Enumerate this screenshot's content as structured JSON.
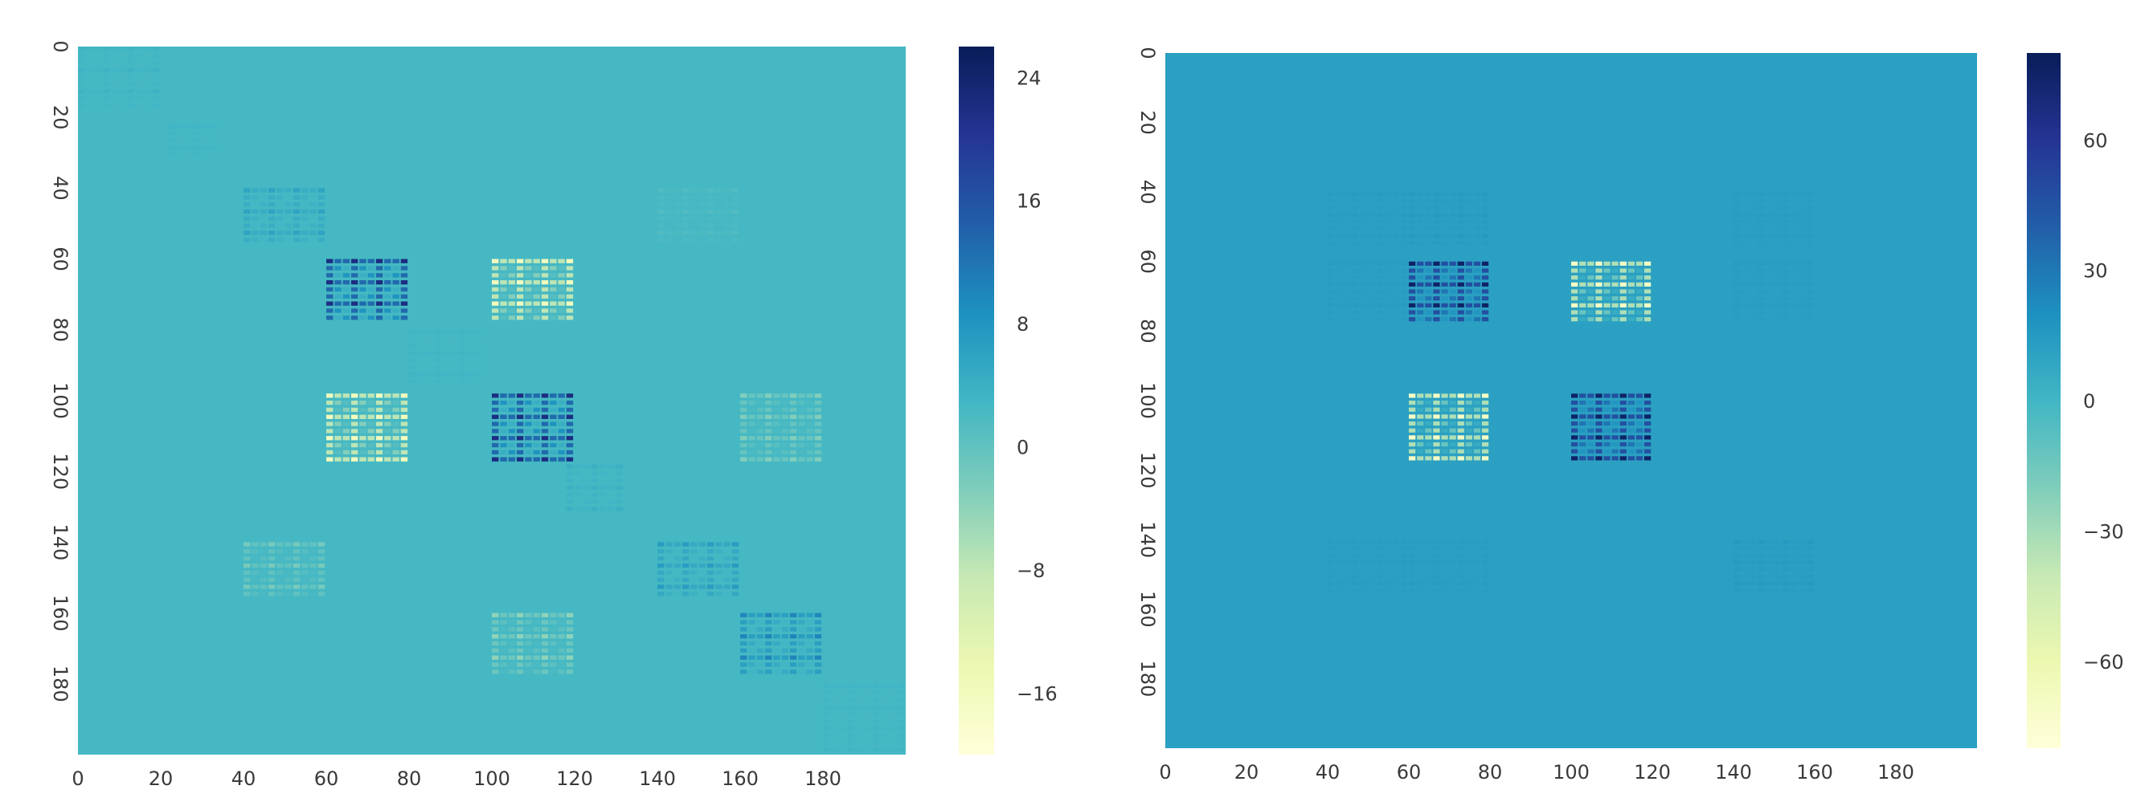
{
  "chart_data": [
    {
      "type": "heatmap",
      "title": "",
      "xlabel": "",
      "ylabel": "",
      "matrix_size": 200,
      "background_value": 2.5,
      "x_ticks": [
        0,
        20,
        40,
        60,
        80,
        100,
        120,
        140,
        160,
        180
      ],
      "y_ticks": [
        0,
        20,
        40,
        60,
        80,
        100,
        120,
        140,
        160,
        180
      ],
      "y_tick_rotation": "vertical",
      "colormap": "YlGnBu",
      "colorbar": {
        "vmin": -20,
        "vmax": 26,
        "ticks": [
          24,
          16,
          8,
          0,
          -8,
          -16
        ],
        "labels": [
          "24",
          "16",
          "8",
          "0",
          "−8",
          "−16"
        ]
      },
      "blocks": [
        {
          "rows": [
            0,
            18
          ],
          "cols": [
            0,
            20
          ],
          "value": 3.5
        },
        {
          "rows": [
            22,
            32
          ],
          "cols": [
            22,
            34
          ],
          "value": 3.2
        },
        {
          "rows": [
            40,
            56
          ],
          "cols": [
            40,
            60
          ],
          "value": 6
        },
        {
          "rows": [
            40,
            56
          ],
          "cols": [
            140,
            160
          ],
          "value": 1.5
        },
        {
          "rows": [
            60,
            78
          ],
          "cols": [
            60,
            80
          ],
          "value": 22
        },
        {
          "rows": [
            60,
            78
          ],
          "cols": [
            100,
            120
          ],
          "value": -16
        },
        {
          "rows": [
            80,
            95
          ],
          "cols": [
            80,
            98
          ],
          "value": 3.2
        },
        {
          "rows": [
            98,
            118
          ],
          "cols": [
            60,
            80
          ],
          "value": -16
        },
        {
          "rows": [
            98,
            118
          ],
          "cols": [
            100,
            120
          ],
          "value": 22
        },
        {
          "rows": [
            98,
            118
          ],
          "cols": [
            160,
            180
          ],
          "value": -3
        },
        {
          "rows": [
            118,
            132
          ],
          "cols": [
            118,
            132
          ],
          "value": 4
        },
        {
          "rows": [
            140,
            156
          ],
          "cols": [
            40,
            60
          ],
          "value": -2
        },
        {
          "rows": [
            140,
            156
          ],
          "cols": [
            140,
            160
          ],
          "value": 7
        },
        {
          "rows": [
            160,
            178
          ],
          "cols": [
            100,
            120
          ],
          "value": -4
        },
        {
          "rows": [
            160,
            178
          ],
          "cols": [
            160,
            180
          ],
          "value": 10
        },
        {
          "rows": [
            180,
            200
          ],
          "cols": [
            180,
            200
          ],
          "value": 3.2
        }
      ]
    },
    {
      "type": "heatmap",
      "title": "",
      "xlabel": "",
      "ylabel": "",
      "matrix_size": 200,
      "background_value": 12,
      "x_ticks": [
        0,
        20,
        40,
        60,
        80,
        100,
        120,
        140,
        160,
        180
      ],
      "y_ticks": [
        0,
        20,
        40,
        60,
        80,
        100,
        120,
        140,
        160,
        180
      ],
      "y_tick_rotation": "vertical",
      "colormap": "YlGnBu",
      "colorbar": {
        "vmin": -80,
        "vmax": 80,
        "ticks": [
          60,
          30,
          0,
          -30,
          -60
        ],
        "labels": [
          "60",
          "30",
          "0",
          "−30",
          "−60"
        ]
      },
      "blocks": [
        {
          "rows": [
            40,
            56
          ],
          "cols": [
            40,
            60
          ],
          "value": 14
        },
        {
          "rows": [
            40,
            56
          ],
          "cols": [
            60,
            80
          ],
          "value": 15
        },
        {
          "rows": [
            40,
            56
          ],
          "cols": [
            140,
            160
          ],
          "value": 14
        },
        {
          "rows": [
            60,
            78
          ],
          "cols": [
            40,
            60
          ],
          "value": 14
        },
        {
          "rows": [
            60,
            78
          ],
          "cols": [
            60,
            80
          ],
          "value": 75
        },
        {
          "rows": [
            60,
            78
          ],
          "cols": [
            100,
            120
          ],
          "value": -70
        },
        {
          "rows": [
            60,
            78
          ],
          "cols": [
            140,
            160
          ],
          "value": 14
        },
        {
          "rows": [
            98,
            118
          ],
          "cols": [
            60,
            80
          ],
          "value": -70
        },
        {
          "rows": [
            98,
            118
          ],
          "cols": [
            100,
            120
          ],
          "value": 75
        },
        {
          "rows": [
            140,
            156
          ],
          "cols": [
            40,
            60
          ],
          "value": 14
        },
        {
          "rows": [
            140,
            156
          ],
          "cols": [
            60,
            80
          ],
          "value": 14
        },
        {
          "rows": [
            140,
            156
          ],
          "cols": [
            140,
            160
          ],
          "value": 15
        }
      ]
    }
  ]
}
